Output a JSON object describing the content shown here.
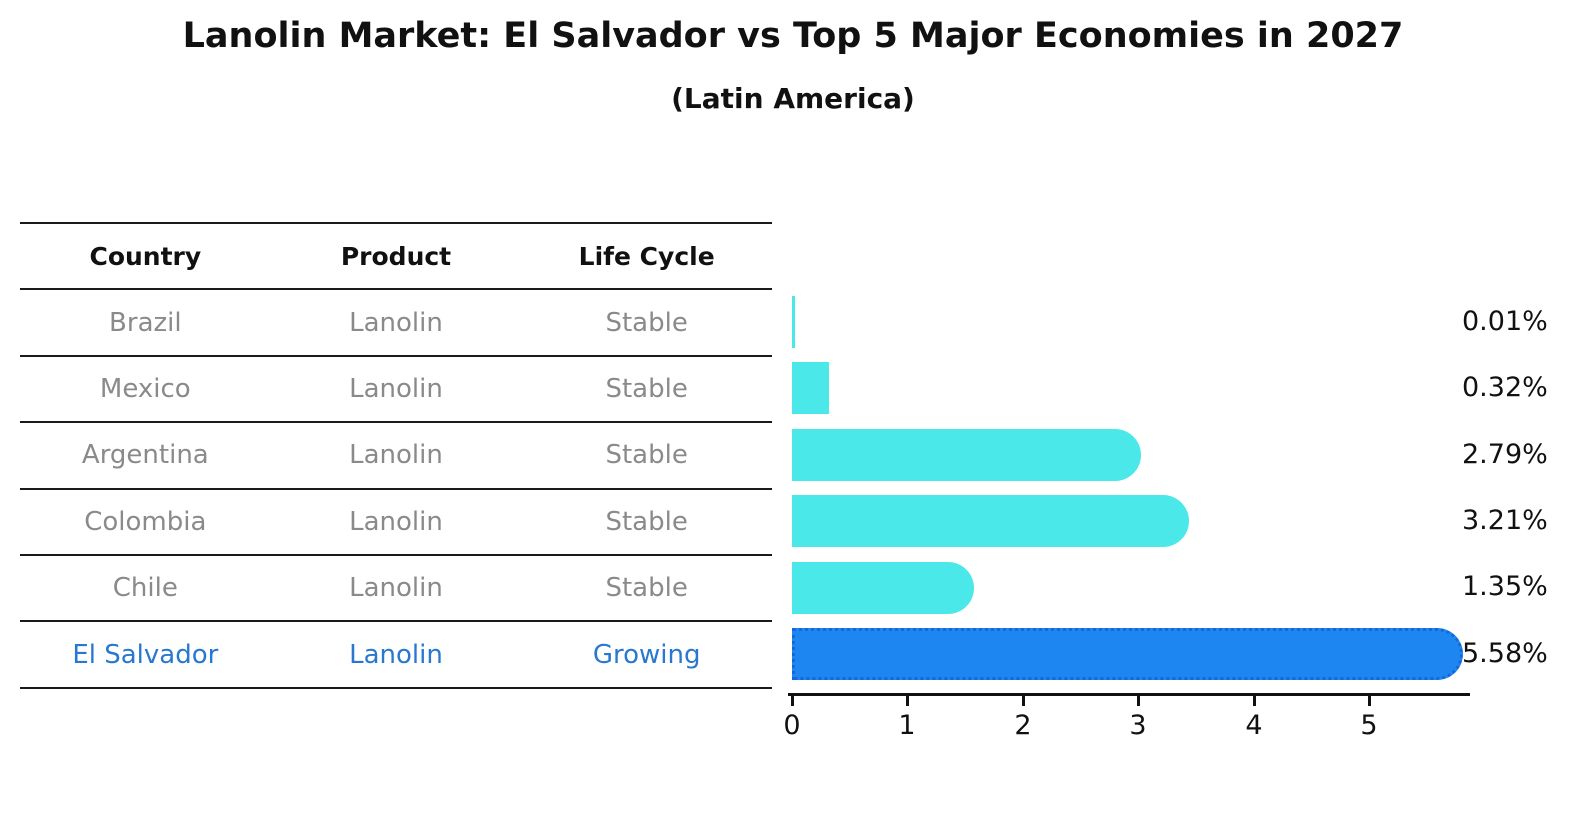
{
  "title": "Lanolin Market: El Salvador vs Top 5 Major Economies in 2027",
  "subtitle": "(Latin America)",
  "table": {
    "headers": [
      "Country",
      "Product",
      "Life Cycle"
    ],
    "rows": [
      {
        "country": "Brazil",
        "product": "Lanolin",
        "life_cycle": "Stable"
      },
      {
        "country": "Mexico",
        "product": "Lanolin",
        "life_cycle": "Stable"
      },
      {
        "country": "Argentina",
        "product": "Lanolin",
        "life_cycle": "Stable"
      },
      {
        "country": "Colombia",
        "product": "Lanolin",
        "life_cycle": "Stable"
      },
      {
        "country": "Chile",
        "product": "Lanolin",
        "life_cycle": "Stable"
      },
      {
        "country": "El Salvador",
        "product": "Lanolin",
        "life_cycle": "Growing"
      }
    ]
  },
  "chart_data": {
    "type": "bar",
    "orientation": "horizontal",
    "title": "Lanolin Market: El Salvador vs Top 5 Major Economies in 2027",
    "subtitle": "(Latin America)",
    "categories": [
      "Brazil",
      "Mexico",
      "Argentina",
      "Colombia",
      "Chile",
      "El Salvador"
    ],
    "values": [
      0.01,
      0.32,
      2.79,
      3.21,
      1.35,
      5.58
    ],
    "value_labels": [
      "0.01%",
      "0.32%",
      "2.79%",
      "3.21%",
      "1.35%",
      "5.58%"
    ],
    "xticks": [
      "0",
      "1",
      "2",
      "3",
      "4",
      "5"
    ],
    "xlim": [
      0,
      5.86
    ],
    "grid": false,
    "legend": "none",
    "highlight_index": 5,
    "colors": {
      "bar_default": "#4AE8E8",
      "bar_highlight": "#1E86F0",
      "highlight_border": "#1568D8",
      "highlight_text": "#2878D2",
      "cell_text": "#8A8A8A",
      "axis_text": "#111111"
    }
  }
}
